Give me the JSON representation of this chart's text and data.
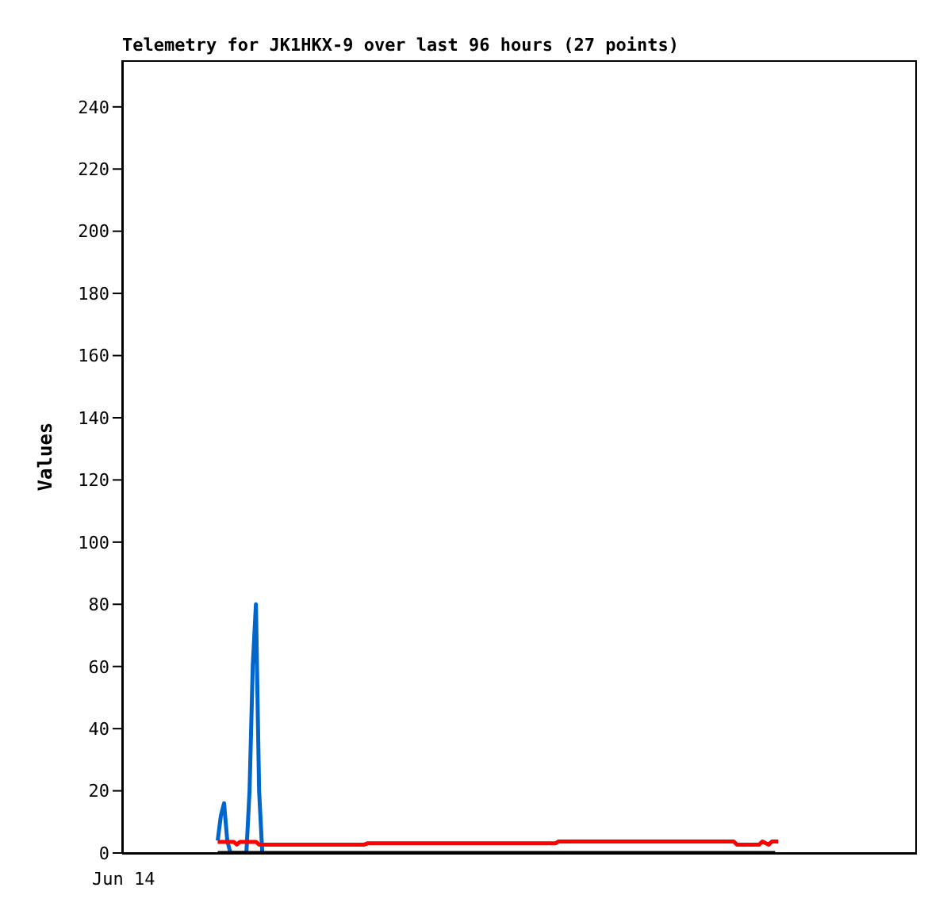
{
  "chart_data": {
    "type": "line",
    "title": "Telemetry for JK1HKX-9 over last 96 hours (27 points)",
    "ylabel": "Values",
    "annotations": [
      "Jun 14"
    ],
    "ylim": [
      0,
      255
    ],
    "yticks": [
      0,
      20,
      40,
      60,
      80,
      100,
      120,
      140,
      160,
      180,
      200,
      220,
      240
    ],
    "grid": false,
    "legend": false,
    "marker": "none",
    "line_style": "solid",
    "categories": [
      null,
      null,
      null,
      null,
      null,
      null,
      null,
      null,
      null,
      null,
      null,
      null,
      null,
      null,
      null,
      null,
      null,
      null,
      null,
      null,
      null,
      null,
      null,
      null,
      null,
      null,
      null,
      null,
      null,
      null,
      null,
      null,
      null,
      null,
      null,
      null,
      null,
      null,
      null,
      null,
      null,
      null,
      null,
      null,
      null,
      null,
      null,
      null,
      null,
      null,
      null,
      null,
      null,
      null,
      null,
      null,
      null,
      null,
      null,
      null,
      null,
      null,
      null,
      null,
      null,
      null,
      null,
      null,
      null,
      null,
      null,
      null,
      null,
      null,
      null,
      null,
      null,
      null,
      null,
      null,
      null,
      null,
      null,
      null,
      null,
      null,
      null,
      null,
      null,
      null,
      null,
      null,
      null,
      null,
      null,
      null,
      null,
      null,
      null,
      null,
      null,
      null,
      null,
      null,
      null,
      null,
      null,
      null,
      null,
      null,
      null,
      null,
      null,
      null,
      null,
      null,
      null,
      null,
      null,
      null,
      null,
      null,
      null,
      null,
      null,
      null,
      null,
      null,
      null,
      null,
      null,
      null,
      null,
      null,
      null,
      null,
      null,
      null,
      null,
      null,
      null,
      null,
      null,
      null,
      null,
      null,
      null,
      null,
      null,
      null,
      null,
      null,
      null,
      null,
      null,
      null,
      null,
      null,
      null,
      null,
      null,
      null,
      null,
      null,
      null,
      null,
      null,
      null,
      null,
      null,
      null,
      null,
      null,
      null,
      null,
      null,
      null,
      null,
      null,
      null,
      null,
      null,
      null,
      null,
      null,
      null,
      null,
      null,
      null,
      null,
      null,
      null,
      null,
      null,
      null,
      null,
      null,
      null,
      null,
      null,
      null,
      null,
      null,
      null,
      null,
      null,
      null,
      null,
      null,
      null,
      null,
      null,
      null,
      null,
      null,
      null,
      null,
      null,
      null,
      null,
      null,
      null,
      null,
      null,
      null,
      null,
      null,
      null,
      null,
      null,
      null,
      null,
      null,
      null,
      null,
      null,
      null,
      null,
      null,
      null,
      null,
      null,
      null,
      null,
      null,
      null,
      null,
      null,
      null,
      null
    ],
    "series": [
      {
        "color": "#0066cc",
        "values": [
          null,
          null,
          null,
          null,
          null,
          null,
          null,
          null,
          null,
          null,
          null,
          null,
          null,
          null,
          null,
          null,
          null,
          null,
          null,
          null,
          null,
          null,
          null,
          null,
          null,
          null,
          null,
          null,
          null,
          null,
          4,
          12,
          16,
          4,
          0,
          0,
          0,
          0,
          0,
          0,
          20,
          60,
          80,
          20,
          0,
          null,
          null,
          null,
          null,
          null,
          null,
          null,
          null,
          null,
          null,
          null,
          null,
          null,
          null,
          null,
          null,
          null,
          null,
          null,
          null,
          null,
          null,
          null,
          null,
          null,
          null,
          null,
          null,
          null,
          null,
          null,
          null,
          null,
          null,
          null,
          null,
          null,
          null,
          null,
          null,
          null,
          null,
          null,
          null,
          null,
          null,
          null,
          null,
          null,
          null,
          null,
          null,
          null,
          null,
          null,
          null,
          null,
          null,
          null,
          null,
          null,
          null,
          null,
          null,
          null,
          null,
          null,
          null,
          null,
          null,
          null,
          null,
          null,
          null,
          null,
          null,
          null,
          null,
          null,
          null,
          null,
          null,
          null,
          null,
          null,
          null,
          null,
          null,
          null,
          null,
          null,
          null,
          null,
          null,
          null,
          null,
          null,
          null,
          null,
          null,
          null,
          null,
          null,
          null,
          null,
          null,
          null,
          null,
          null,
          null,
          null,
          null,
          null,
          null,
          null,
          null,
          null,
          null,
          null,
          null,
          null,
          null,
          null,
          null,
          null,
          null,
          null,
          null,
          null,
          null,
          null,
          null,
          null,
          null,
          null,
          null,
          null,
          null,
          null,
          null,
          null,
          null,
          null,
          null,
          null,
          null,
          null,
          null,
          null,
          null,
          null,
          null,
          null,
          null,
          null,
          null,
          null,
          null,
          null,
          null,
          null,
          null,
          null,
          null,
          null,
          null,
          null,
          null,
          null,
          null,
          null,
          null,
          null,
          null,
          null,
          null,
          null,
          null,
          null,
          null,
          null,
          null,
          null,
          null,
          null,
          null,
          null,
          null,
          null,
          null,
          null,
          null,
          null,
          null,
          null,
          null,
          null,
          null,
          null,
          null,
          null,
          null,
          null,
          null,
          null
        ]
      },
      {
        "color": "#000000",
        "values": [
          null,
          null,
          null,
          null,
          null,
          null,
          null,
          null,
          null,
          null,
          null,
          null,
          null,
          null,
          null,
          null,
          null,
          null,
          null,
          null,
          null,
          null,
          null,
          null,
          null,
          null,
          null,
          null,
          null,
          null,
          0,
          0,
          0,
          0,
          0,
          0,
          0,
          0,
          0,
          0,
          0,
          0,
          0,
          0,
          0,
          0,
          0,
          0,
          0,
          0,
          0,
          0,
          0,
          0,
          0,
          0,
          0,
          0,
          0,
          0,
          0,
          0,
          0,
          0,
          0,
          0,
          0,
          0,
          0,
          0,
          0,
          0,
          0,
          0,
          0,
          0,
          0,
          0,
          0,
          0,
          0,
          0,
          0,
          0,
          0,
          0,
          0,
          0,
          0,
          0,
          0,
          0,
          0,
          0,
          0,
          0,
          0,
          0,
          0,
          0,
          0,
          0,
          0,
          0,
          0,
          0,
          0,
          0,
          0,
          0,
          0,
          0,
          0,
          0,
          0,
          0,
          0,
          0,
          0,
          0,
          0,
          0,
          0,
          0,
          0,
          0,
          0,
          0,
          0,
          0,
          0,
          0,
          0,
          0,
          0,
          0,
          0,
          0,
          0,
          0,
          0,
          0,
          0,
          0,
          0,
          0,
          0,
          0,
          0,
          0,
          0,
          0,
          0,
          0,
          0,
          0,
          0,
          0,
          0,
          0,
          0,
          0,
          0,
          0,
          0,
          0,
          0,
          0,
          0,
          0,
          0,
          0,
          0,
          0,
          0,
          0,
          0,
          0,
          0,
          0,
          0,
          0,
          0,
          0,
          0,
          0,
          0,
          0,
          0,
          0,
          0,
          0,
          0,
          0,
          0,
          0,
          0,
          0,
          0,
          0,
          0,
          0,
          0,
          0,
          0,
          0,
          null,
          null,
          null,
          null,
          null,
          null,
          null,
          null,
          null,
          null,
          null,
          null,
          null,
          null,
          null,
          null,
          null,
          null,
          null,
          null,
          null,
          null,
          null,
          null,
          null,
          null,
          null,
          null,
          null,
          null,
          null,
          null,
          null,
          null,
          null,
          null,
          null,
          null,
          null,
          null,
          null,
          null,
          null,
          null
        ]
      },
      {
        "color": "#ff0000",
        "values": [
          null,
          null,
          null,
          null,
          null,
          null,
          null,
          null,
          null,
          null,
          null,
          null,
          null,
          null,
          null,
          null,
          null,
          null,
          null,
          null,
          null,
          null,
          null,
          null,
          null,
          null,
          null,
          null,
          null,
          null,
          3.6,
          3.6,
          3.6,
          3.6,
          3.6,
          3.6,
          2.7,
          3.6,
          3.6,
          3.6,
          3.6,
          3.6,
          3.6,
          2.7,
          2.7,
          2.7,
          2.7,
          2.7,
          2.7,
          2.7,
          2.7,
          2.7,
          2.7,
          2.7,
          2.7,
          2.7,
          2.7,
          2.7,
          2.7,
          2.7,
          2.7,
          2.7,
          2.7,
          2.7,
          2.7,
          2.7,
          2.7,
          2.7,
          2.7,
          2.7,
          2.7,
          2.7,
          2.7,
          2.7,
          2.7,
          2.7,
          2.7,
          3.1,
          3.1,
          3.1,
          3.1,
          3.1,
          3.1,
          3.1,
          3.1,
          3.1,
          3.1,
          3.1,
          3.1,
          3.1,
          3.1,
          3.1,
          3.1,
          3.1,
          3.1,
          3.1,
          3.1,
          3.1,
          3.1,
          3.1,
          3.1,
          3.1,
          3.1,
          3.1,
          3.1,
          3.1,
          3.1,
          3.1,
          3.1,
          3.1,
          3.1,
          3.1,
          3.1,
          3.1,
          3.1,
          3.1,
          3.1,
          3.1,
          3.1,
          3.1,
          3.1,
          3.1,
          3.1,
          3.1,
          3.1,
          3.1,
          3.1,
          3.1,
          3.1,
          3.1,
          3.1,
          3.1,
          3.1,
          3.1,
          3.1,
          3.1,
          3.1,
          3.7,
          3.7,
          3.7,
          3.7,
          3.7,
          3.7,
          3.7,
          3.7,
          3.7,
          3.7,
          3.7,
          3.7,
          3.7,
          3.7,
          3.7,
          3.7,
          3.7,
          3.7,
          3.7,
          3.7,
          3.7,
          3.7,
          3.7,
          3.7,
          3.7,
          3.7,
          3.7,
          3.7,
          3.7,
          3.7,
          3.7,
          3.7,
          3.7,
          3.7,
          3.7,
          3.7,
          3.7,
          3.7,
          3.7,
          3.7,
          3.7,
          3.7,
          3.7,
          3.7,
          3.7,
          3.7,
          3.7,
          3.7,
          3.7,
          3.7,
          3.7,
          3.7,
          3.7,
          3.7,
          3.7,
          3.7,
          2.7,
          2.7,
          2.7,
          2.7,
          2.7,
          2.7,
          2.7,
          2.7,
          3.7,
          3.2,
          2.7,
          3.7,
          3.7,
          3.7,
          null,
          null,
          null,
          null,
          null,
          null,
          null,
          null,
          null,
          null,
          null,
          null,
          null,
          null,
          null,
          null,
          null,
          null,
          null,
          null,
          null,
          null,
          null,
          null,
          null,
          null,
          null,
          null,
          null,
          null,
          null,
          null,
          null,
          null,
          null,
          null,
          null,
          null,
          null,
          null,
          null,
          null,
          null
        ]
      }
    ]
  }
}
